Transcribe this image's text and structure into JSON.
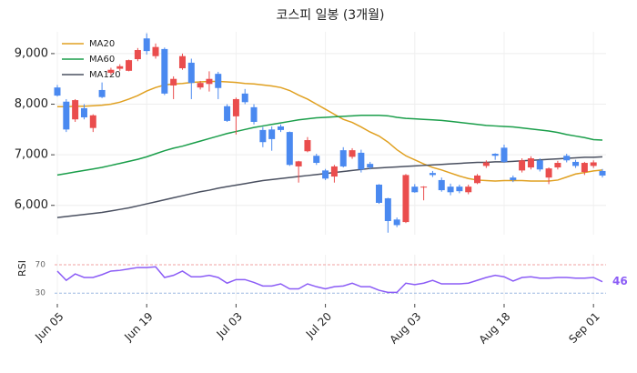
{
  "chart_data": [
    {
      "type": "candlestick",
      "title": "코스피 일봉 (3개월)",
      "categories": [
        "Jun 05",
        null,
        null,
        null,
        null,
        null,
        null,
        null,
        null,
        null,
        "Jun 19",
        null,
        null,
        null,
        null,
        null,
        null,
        null,
        null,
        null,
        "Jul 03",
        null,
        null,
        null,
        null,
        null,
        null,
        null,
        null,
        null,
        "Jul 20",
        null,
        null,
        null,
        null,
        null,
        null,
        null,
        null,
        null,
        "Aug 03",
        null,
        null,
        null,
        null,
        null,
        null,
        null,
        null,
        null,
        "Aug 18",
        null,
        null,
        null,
        null,
        null,
        null,
        null,
        null,
        null,
        "Sep 01",
        null
      ],
      "open": [
        8330,
        8050,
        7700,
        7920,
        7530,
        8280,
        8620,
        8700,
        8660,
        8890,
        9300,
        8950,
        9090,
        8370,
        8710,
        8820,
        8330,
        8400,
        8600,
        7960,
        7760,
        8210,
        7940,
        7490,
        7500,
        7560,
        7450,
        6770,
        7070,
        6980,
        6690,
        6570,
        7090,
        6960,
        7040,
        6820,
        6410,
        6140,
        5720,
        5670,
        6370,
        6360,
        6640,
        6500,
        6370,
        6370,
        6260,
        6440,
        6780,
        7020,
        7140,
        6550,
        6690,
        6750,
        6890,
        6550,
        6750,
        6980,
        6860,
        6660,
        6780,
        6680
      ],
      "high": [
        8380,
        8100,
        8100,
        8000,
        7800,
        8430,
        8720,
        8790,
        8880,
        9110,
        9400,
        9200,
        9120,
        8550,
        9000,
        8900,
        8460,
        8650,
        8640,
        8000,
        8130,
        8300,
        8000,
        7550,
        7560,
        7600,
        7460,
        6880,
        7350,
        7020,
        6720,
        6800,
        7150,
        7130,
        7100,
        6860,
        6420,
        6150,
        5760,
        6620,
        6420,
        6380,
        6680,
        6550,
        6430,
        6410,
        6410,
        6620,
        6890,
        7030,
        7200,
        6590,
        6930,
        6970,
        6930,
        6750,
        6880,
        7020,
        6900,
        6860,
        6890,
        6720
      ],
      "low": [
        8150,
        7450,
        7650,
        7700,
        7450,
        8120,
        8580,
        8660,
        8650,
        8850,
        8980,
        8900,
        8180,
        8100,
        8680,
        8100,
        8290,
        8250,
        8100,
        7650,
        7400,
        8000,
        7600,
        7150,
        7080,
        7450,
        6780,
        6450,
        7050,
        6800,
        6500,
        6450,
        6750,
        6920,
        6650,
        6710,
        6030,
        5460,
        5570,
        5650,
        6250,
        6100,
        6560,
        6270,
        6200,
        6240,
        6220,
        6420,
        6740,
        6900,
        6840,
        6460,
        6650,
        6710,
        6670,
        6420,
        6710,
        6850,
        6740,
        6600,
        6740,
        6550
      ],
      "close": [
        8170,
        7500,
        8080,
        7740,
        7780,
        8140,
        8680,
        8750,
        8870,
        9070,
        9050,
        9130,
        8210,
        8500,
        8950,
        8420,
        8420,
        8500,
        8320,
        7670,
        8100,
        8040,
        7650,
        7250,
        7310,
        7490,
        6800,
        6870,
        7290,
        6840,
        6530,
        6770,
        6770,
        7090,
        6710,
        6750,
        6050,
        5690,
        5610,
        6600,
        6260,
        6370,
        6600,
        6300,
        6260,
        6280,
        6370,
        6590,
        6850,
        6980,
        6860,
        6500,
        6890,
        6930,
        6710,
        6730,
        6840,
        6890,
        6780,
        6840,
        6850,
        6590
      ],
      "up_color": "#ea4d4d",
      "down_color": "#4a89f0",
      "series": [
        {
          "name": "MA20",
          "color": "#e0a020",
          "values": [
            7950,
            7950,
            7960,
            7960,
            7970,
            7980,
            8000,
            8040,
            8100,
            8170,
            8260,
            8330,
            8380,
            8400,
            8410,
            8430,
            8440,
            8450,
            8450,
            8440,
            8430,
            8410,
            8400,
            8380,
            8360,
            8330,
            8270,
            8180,
            8100,
            8000,
            7900,
            7800,
            7700,
            7640,
            7550,
            7450,
            7370,
            7250,
            7100,
            6980,
            6900,
            6820,
            6750,
            6700,
            6640,
            6580,
            6530,
            6500,
            6490,
            6480,
            6490,
            6490,
            6490,
            6480,
            6480,
            6480,
            6500,
            6560,
            6620,
            6650,
            6680,
            6700
          ]
        },
        {
          "name": "MA60",
          "color": "#1a9e4a",
          "values": [
            6600,
            6630,
            6660,
            6690,
            6720,
            6750,
            6790,
            6830,
            6870,
            6910,
            6960,
            7020,
            7080,
            7130,
            7170,
            7220,
            7270,
            7320,
            7370,
            7420,
            7460,
            7500,
            7540,
            7570,
            7600,
            7630,
            7660,
            7690,
            7710,
            7730,
            7740,
            7750,
            7760,
            7770,
            7780,
            7780,
            7780,
            7770,
            7740,
            7720,
            7710,
            7700,
            7690,
            7680,
            7660,
            7640,
            7620,
            7600,
            7580,
            7570,
            7560,
            7550,
            7530,
            7510,
            7490,
            7470,
            7440,
            7400,
            7370,
            7340,
            7300,
            7290
          ]
        },
        {
          "name": "MA120",
          "color": "#4a5060",
          "values": [
            5760,
            5780,
            5800,
            5820,
            5840,
            5860,
            5890,
            5920,
            5950,
            5990,
            6030,
            6070,
            6110,
            6150,
            6190,
            6230,
            6270,
            6300,
            6340,
            6370,
            6400,
            6430,
            6460,
            6490,
            6510,
            6530,
            6550,
            6570,
            6590,
            6610,
            6630,
            6650,
            6670,
            6690,
            6710,
            6730,
            6740,
            6750,
            6760,
            6770,
            6780,
            6790,
            6800,
            6810,
            6820,
            6830,
            6840,
            6850,
            6850,
            6860,
            6860,
            6870,
            6880,
            6890,
            6900,
            6910,
            6920,
            6930,
            6940,
            6950,
            6950,
            6960
          ]
        }
      ],
      "ylim": [
        5420,
        9430
      ],
      "yticks": [
        {
          "value": 6000,
          "label": "6,000"
        },
        {
          "value": 7000,
          "label": "7,000"
        },
        {
          "value": 8000,
          "label": "8,000"
        },
        {
          "value": 9000,
          "label": "9,000"
        }
      ],
      "grid": true,
      "legend": "upper-left"
    },
    {
      "type": "line",
      "ylabel": "RSI",
      "series": [
        {
          "name": "RSI",
          "color": "#8b5cf6",
          "values": [
            61,
            48,
            57,
            52,
            52,
            56,
            61,
            62,
            64,
            66,
            66,
            67,
            52,
            55,
            61,
            53,
            53,
            55,
            52,
            44,
            49,
            49,
            45,
            40,
            40,
            43,
            36,
            36,
            43,
            39,
            36,
            39,
            40,
            44,
            39,
            39,
            34,
            31,
            31,
            44,
            42,
            44,
            48,
            43,
            43,
            43,
            44,
            48,
            52,
            55,
            53,
            47,
            52,
            53,
            51,
            51,
            52,
            52,
            51,
            51,
            52,
            46
          ]
        }
      ],
      "ylim": [
        20,
        84
      ],
      "yticks": [
        30,
        70
      ],
      "tick_line_colors": [
        "#9bb8e0",
        "#f0a0a0"
      ]
    }
  ]
}
